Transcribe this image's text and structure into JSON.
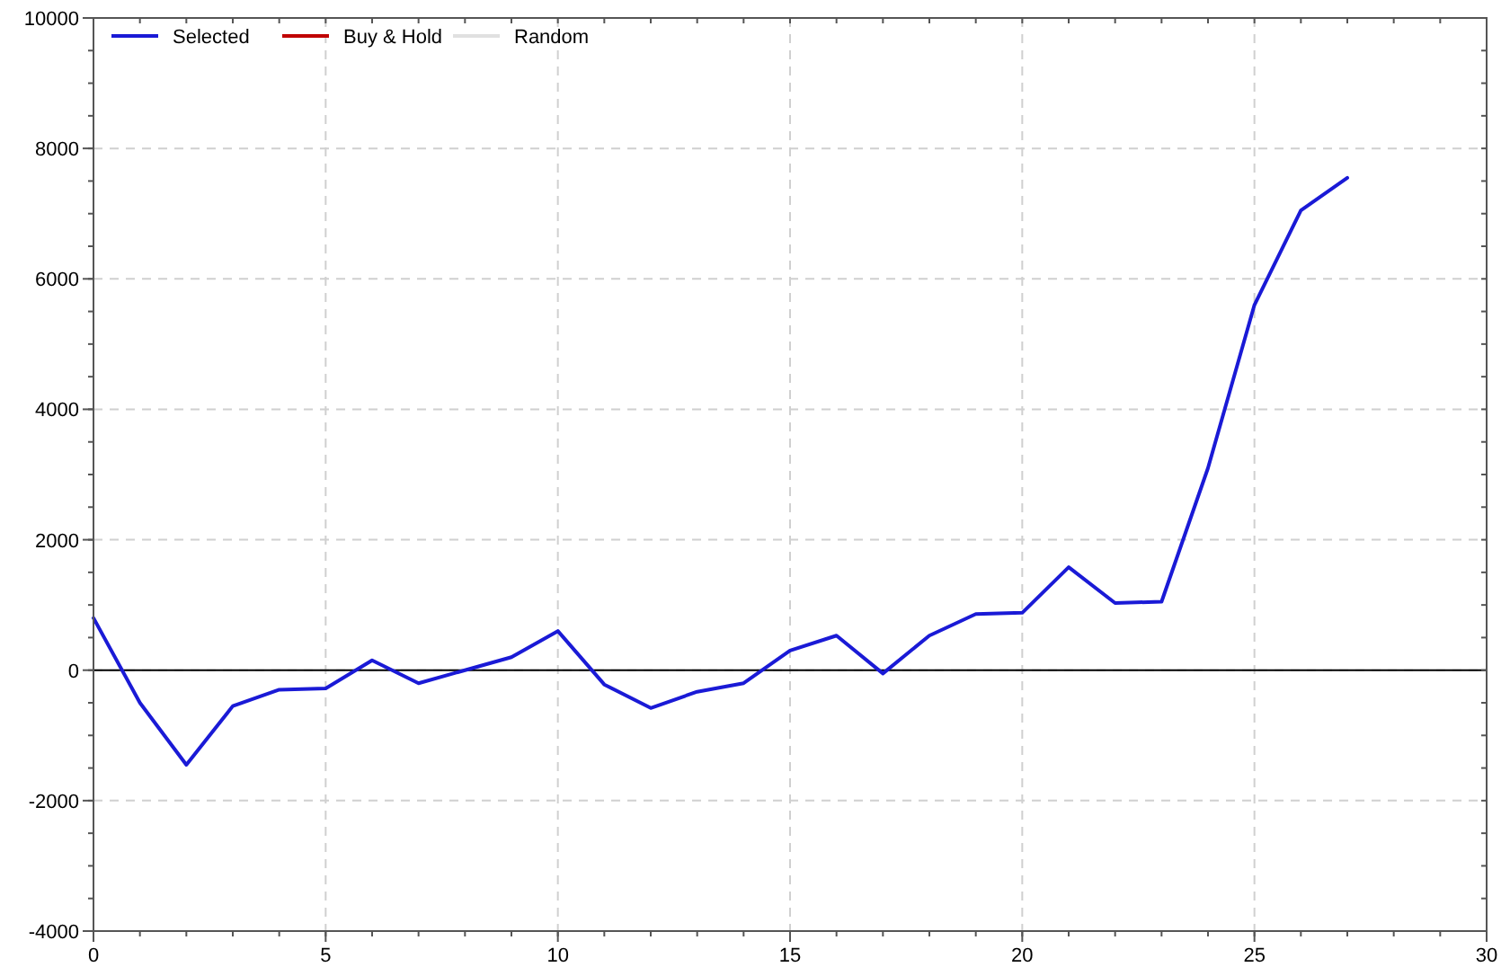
{
  "chart_data": {
    "type": "line",
    "x": [
      0,
      1,
      2,
      3,
      4,
      5,
      6,
      7,
      8,
      9,
      10,
      11,
      12,
      13,
      14,
      15,
      16,
      17,
      18,
      19,
      20,
      21,
      22,
      23,
      24,
      25,
      26,
      27
    ],
    "series": [
      {
        "name": "Selected",
        "color": "#1a1ad6",
        "values": [
          800,
          -500,
          -1450,
          -550,
          -300,
          -280,
          150,
          -200,
          0,
          200,
          600,
          -220,
          -580,
          -330,
          -200,
          300,
          530,
          -50,
          530,
          860,
          880,
          1580,
          1030,
          1050,
          3100,
          5600,
          7050,
          7550
        ]
      },
      {
        "name": "Buy & Hold",
        "color": "#c00000",
        "values": [
          null,
          null,
          null,
          null,
          null,
          null,
          null,
          null,
          null,
          null,
          null,
          null,
          null,
          null,
          null,
          null,
          null,
          null,
          null,
          null,
          null,
          null,
          null,
          null,
          null,
          null,
          null,
          null
        ]
      },
      {
        "name": "Random",
        "color": "#e0e0e0",
        "values": [
          null,
          null,
          null,
          null,
          null,
          null,
          null,
          null,
          null,
          null,
          null,
          null,
          null,
          null,
          null,
          null,
          null,
          null,
          null,
          null,
          null,
          null,
          null,
          null,
          null,
          null,
          null,
          null
        ]
      }
    ],
    "xlim": [
      0,
      30
    ],
    "xticks": [
      0,
      5,
      10,
      15,
      20,
      25,
      30
    ],
    "ylim": [
      -4000,
      10000
    ],
    "yticks": [
      -4000,
      -2000,
      0,
      2000,
      4000,
      6000,
      8000,
      10000
    ],
    "ref_lines": [
      {
        "axis": "y",
        "value": 0,
        "color": "#000000"
      }
    ],
    "grid": true,
    "legend": "top left",
    "marker": "none",
    "line_style": "solid"
  }
}
